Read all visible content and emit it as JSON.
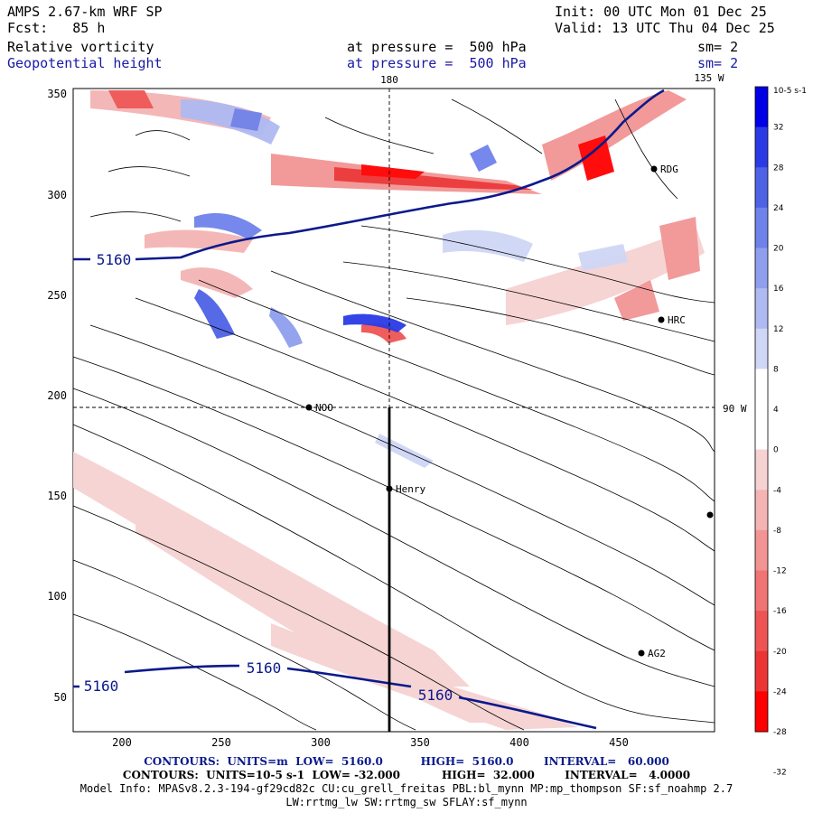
{
  "header": {
    "model": "AMPS 2.67-km WRF SP",
    "init": "Init: 00 UTC Mon 01 Dec 25",
    "fcst": "Fcst:   85 h",
    "valid": "Valid: 13 UTC Thu 04 Dec 25",
    "field1": "Relative vorticity",
    "field1_level": "at pressure =  500 hPa",
    "field1_sm": "sm= 2",
    "field2": "Geopotential height",
    "field2_level": "at pressure =  500 hPa",
    "field2_sm": "sm= 2"
  },
  "map": {
    "meridian_180": "180",
    "meridian_135w": "135 W",
    "meridian_90w": "90 W",
    "x_ticks": [
      "200",
      "250",
      "300",
      "350",
      "400",
      "450"
    ],
    "y_ticks": [
      "350",
      "300",
      "250",
      "200",
      "150",
      "100",
      "50"
    ],
    "height_contour_label": "5160",
    "stations": [
      {
        "id": "rdg",
        "name": "RDG"
      },
      {
        "id": "hrc",
        "name": "HRC"
      },
      {
        "id": "noo",
        "name": "NOO"
      },
      {
        "id": "henry",
        "name": "Henry"
      },
      {
        "id": "ag2",
        "name": "AG2"
      }
    ],
    "colors": {
      "height_contour": "#0a1a8c",
      "positive_max": "#0000e0",
      "negative_max": "#ff0000"
    }
  },
  "colorbar": {
    "unit_label": "10-5 s-1",
    "ticks": [
      "32",
      "28",
      "24",
      "20",
      "16",
      "12",
      "8",
      "4",
      "0",
      "-4",
      "-8",
      "-12",
      "-16",
      "-20",
      "-24",
      "-28",
      "-32"
    ],
    "colors": [
      "#0000e6",
      "#2a3be6",
      "#4e62e6",
      "#6f82ea",
      "#8f9fee",
      "#afbaf2",
      "#cfd6f6",
      "#ffffff",
      "#ffffff",
      "#f6d2d2",
      "#f4b4b4",
      "#f29494",
      "#f07474",
      "#ee5454",
      "#ec3434",
      "#ff0000"
    ]
  },
  "footer": {
    "line1": "CONTOURS:  UNITS=m  LOW=  5160.0          HIGH=  5160.0        INTERVAL=   60.000",
    "line2": "CONTOURS:  UNITS=10-5 s-1  LOW= -32.000           HIGH=  32.000        INTERVAL=   4.0000",
    "line3": "Model Info: MPASv8.2.3-194-gf29cd82c CU:cu_grell_freitas PBL:bl_mynn MP:mp_thompson SF:sf_noahmp 2.7",
    "line4": "LW:rrtmg_lw SW:rrtmg_sw SFLAY:sf_mynn"
  }
}
